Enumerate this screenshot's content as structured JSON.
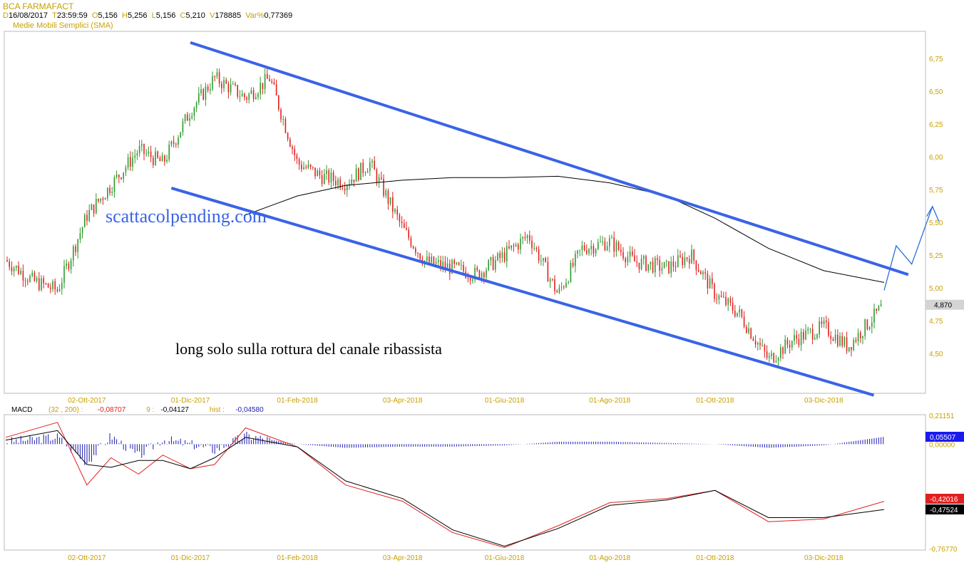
{
  "header": {
    "symbol": "BCA FARMAFACT",
    "fields": [
      {
        "key": "D",
        "value": "16/08/2017"
      },
      {
        "key": "T",
        "value": "23:59:59"
      },
      {
        "key": "O",
        "value": "5,156"
      },
      {
        "key": "H",
        "value": "5,256"
      },
      {
        "key": "L",
        "value": "5,156"
      },
      {
        "key": "C",
        "value": "5,210"
      },
      {
        "key": "V",
        "value": "178885"
      },
      {
        "key": "Var%",
        "value": "0,77369"
      }
    ],
    "indicator_label": "Medie Mobili Semplici (SMA)"
  },
  "colors": {
    "up": "#2e9a2e",
    "down": "#e02020",
    "channel": "#3a63e6",
    "arrow": "#2a6fd8",
    "axis_text": "#c8a000",
    "sma": "#000000",
    "macd": "#e02020",
    "signal": "#000000",
    "hist": "#1a1ab0",
    "watermark": "#3a63e6"
  },
  "chart_data": [
    {
      "type": "line",
      "subtype": "candlestick",
      "title": "BCA FARMAFACT",
      "x_ticks": [
        "02-Ott-2017",
        "01-Dic-2017",
        "01-Feb-2018",
        "03-Apr-2018",
        "01-Giu-2018",
        "01-Ago-2018",
        "01-Ott-2018",
        "03-Dic-2018"
      ],
      "y_ticks": [
        "6,75",
        "6,50",
        "6,25",
        "6,00",
        "5,75",
        "5,50",
        "5,25",
        "5,00",
        "4,75",
        "4,50"
      ],
      "ylim": [
        4.2,
        6.95
      ],
      "last_price_label": "4,870",
      "series": [
        {
          "name": "price",
          "x": [
            "2017-08-16",
            "2017-09-01",
            "2017-09-15",
            "2017-10-02",
            "2017-10-16",
            "2017-11-01",
            "2017-11-15",
            "2017-12-01",
            "2017-12-15",
            "2018-01-02",
            "2018-01-16",
            "2018-02-01",
            "2018-02-15",
            "2018-03-01",
            "2018-03-15",
            "2018-04-03",
            "2018-04-16",
            "2018-05-02",
            "2018-05-16",
            "2018-06-01",
            "2018-06-15",
            "2018-07-02",
            "2018-07-16",
            "2018-08-01",
            "2018-08-15",
            "2018-09-03",
            "2018-09-17",
            "2018-10-01",
            "2018-10-15",
            "2018-11-01",
            "2018-11-15",
            "2018-12-03",
            "2018-12-17",
            "2019-01-07"
          ],
          "values": [
            5.21,
            5.05,
            4.98,
            5.55,
            5.78,
            6.05,
            5.95,
            6.35,
            6.6,
            6.45,
            6.6,
            5.95,
            5.85,
            5.8,
            5.95,
            5.45,
            5.2,
            5.15,
            5.1,
            5.25,
            5.4,
            4.95,
            5.3,
            5.35,
            5.2,
            5.15,
            5.25,
            4.95,
            4.8,
            4.45,
            4.6,
            4.7,
            4.55,
            4.87
          ]
        },
        {
          "name": "SMA",
          "x": [
            "2018-01-01",
            "2018-02-01",
            "2018-03-01",
            "2018-04-03",
            "2018-05-02",
            "2018-06-01",
            "2018-07-02",
            "2018-08-01",
            "2018-09-03",
            "2018-10-01",
            "2018-11-01",
            "2018-12-03",
            "2019-01-07"
          ],
          "values": [
            5.55,
            5.7,
            5.78,
            5.82,
            5.84,
            5.84,
            5.85,
            5.8,
            5.7,
            5.53,
            5.3,
            5.13,
            5.04
          ]
        }
      ],
      "annotations": [
        "scattacolpending.com",
        "long solo sulla rottura del canale ribassista"
      ],
      "channel_upper": {
        "x": [
          "2017-12-01",
          "2019-01-21"
        ],
        "y": [
          6.87,
          5.1
        ]
      },
      "channel_lower": {
        "x": [
          "2017-11-20",
          "2019-01-01"
        ],
        "y": [
          5.76,
          4.18
        ]
      }
    },
    {
      "type": "line",
      "title": "MACD",
      "params": "(32 , 200)",
      "legend": [
        {
          "label": "(32 , 200) :",
          "value": "-0,08707"
        },
        {
          "label": "9 :",
          "value": "-0,04127"
        },
        {
          "label": "hist :",
          "value": "-0,04580"
        }
      ],
      "y_ticks": [
        "0,21151",
        "0,00000",
        "-0,76770"
      ],
      "ylim": [
        -0.7677,
        0.21151
      ],
      "value_labels": [
        "0,05507",
        "-0,42016",
        "-0,47524"
      ],
      "x_ticks": [
        "02-Ott-2017",
        "01-Dic-2017",
        "01-Feb-2018",
        "03-Apr-2018",
        "01-Giu-2018",
        "01-Ago-2018",
        "01-Ott-2018",
        "03-Dic-2018"
      ],
      "series": [
        {
          "name": "MACD",
          "x": [
            "2017-08-16",
            "2017-09-15",
            "2017-10-02",
            "2017-10-16",
            "2017-11-01",
            "2017-11-15",
            "2017-12-01",
            "2017-12-15",
            "2018-01-02",
            "2018-02-01",
            "2018-03-01",
            "2018-04-03",
            "2018-05-02",
            "2018-06-01",
            "2018-07-02",
            "2018-08-01",
            "2018-09-03",
            "2018-10-01",
            "2018-11-01",
            "2018-12-03",
            "2019-01-07"
          ],
          "values": [
            0.05,
            0.16,
            -0.3,
            -0.1,
            -0.22,
            -0.08,
            -0.18,
            -0.15,
            0.12,
            -0.02,
            -0.3,
            -0.42,
            -0.65,
            -0.76,
            -0.6,
            -0.43,
            -0.4,
            -0.34,
            -0.57,
            -0.55,
            -0.42
          ]
        },
        {
          "name": "signal",
          "x": [
            "2017-08-16",
            "2017-09-15",
            "2017-10-02",
            "2017-10-16",
            "2017-11-01",
            "2017-11-15",
            "2017-12-01",
            "2017-12-15",
            "2018-01-02",
            "2018-02-01",
            "2018-03-01",
            "2018-04-03",
            "2018-05-02",
            "2018-06-01",
            "2018-07-02",
            "2018-08-01",
            "2018-09-03",
            "2018-10-01",
            "2018-11-01",
            "2018-12-03",
            "2019-01-07"
          ],
          "values": [
            0.03,
            0.1,
            -0.15,
            -0.17,
            -0.12,
            -0.12,
            -0.18,
            -0.1,
            0.05,
            -0.02,
            -0.27,
            -0.4,
            -0.63,
            -0.75,
            -0.62,
            -0.45,
            -0.41,
            -0.34,
            -0.54,
            -0.54,
            -0.48
          ]
        }
      ]
    }
  ]
}
